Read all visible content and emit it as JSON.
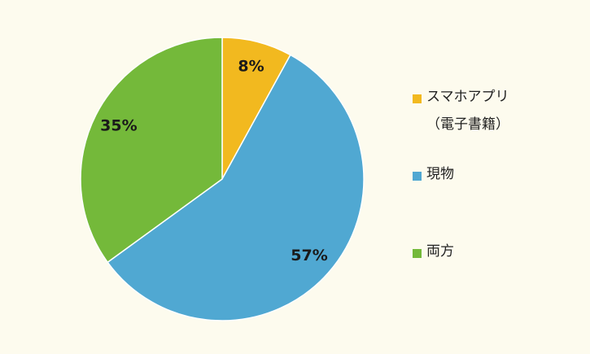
{
  "chart_data": {
    "type": "pie",
    "categories": [
      "スマホアプリ（電子書籍）",
      "現物",
      "両方"
    ],
    "values": [
      8,
      57,
      35
    ],
    "value_labels": [
      "8%",
      "57%",
      "35%"
    ],
    "colors": [
      "#f2b91f",
      "#50a8d2",
      "#74b93a"
    ]
  }
}
